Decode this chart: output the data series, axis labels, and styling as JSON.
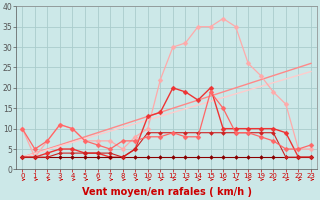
{
  "background_color": "#cce8e8",
  "grid_color": "#aacccc",
  "xlabel": "Vent moyen/en rafales ( km/h )",
  "xlabel_color": "#cc0000",
  "xlabel_fontsize": 7,
  "xtick_color": "#cc0000",
  "ytick_color": "#555555",
  "xlim": [
    -0.5,
    23.5
  ],
  "ylim": [
    0,
    40
  ],
  "yticks": [
    0,
    5,
    10,
    15,
    20,
    25,
    30,
    35,
    40
  ],
  "xticks": [
    0,
    1,
    2,
    3,
    4,
    5,
    6,
    7,
    8,
    9,
    10,
    11,
    12,
    13,
    14,
    15,
    16,
    17,
    18,
    19,
    20,
    21,
    22,
    23
  ],
  "lines": [
    {
      "x": [
        0,
        1,
        2,
        3,
        4,
        5,
        6,
        7,
        8,
        9,
        10,
        11,
        12,
        13,
        14,
        15,
        16,
        17,
        18,
        19,
        20,
        21,
        22,
        23
      ],
      "y": [
        10,
        3,
        7,
        11,
        10,
        7,
        7,
        7,
        5,
        8,
        10,
        22,
        30,
        31,
        35,
        35,
        37,
        35,
        26,
        23,
        19,
        16,
        5,
        5
      ],
      "color": "#ffaaaa",
      "lw": 0.9,
      "marker": "D",
      "ms": 2.5
    },
    {
      "x": [
        0,
        1,
        2,
        3,
        4,
        5,
        6,
        7,
        8,
        9,
        10,
        11,
        12,
        13,
        14,
        15,
        16,
        17,
        18,
        19,
        20,
        21,
        22,
        23
      ],
      "y": [
        3,
        3,
        4,
        5,
        5,
        4,
        4,
        3,
        3,
        5,
        13,
        14,
        20,
        19,
        17,
        20,
        10,
        10,
        10,
        10,
        10,
        9,
        3,
        3
      ],
      "color": "#ee3333",
      "lw": 1.0,
      "marker": "D",
      "ms": 2.5
    },
    {
      "x": [
        0,
        1,
        2,
        3,
        4,
        5,
        6,
        7,
        8,
        9,
        10,
        11,
        12,
        13,
        14,
        15,
        16,
        17,
        18,
        19,
        20,
        21,
        22,
        23
      ],
      "y": [
        3,
        3,
        3,
        3,
        3,
        3,
        3,
        3,
        3,
        3,
        3,
        3,
        3,
        3,
        3,
        3,
        3,
        3,
        3,
        3,
        3,
        3,
        3,
        3
      ],
      "color": "#880000",
      "lw": 0.8,
      "marker": "D",
      "ms": 2
    },
    {
      "x": [
        0,
        1,
        2,
        3,
        4,
        5,
        6,
        7,
        8,
        9,
        10,
        11,
        12,
        13,
        14,
        15,
        16,
        17,
        18,
        19,
        20,
        21,
        22,
        23
      ],
      "y": [
        3,
        3,
        3,
        4,
        4,
        4,
        4,
        4,
        3,
        5,
        9,
        9,
        9,
        9,
        9,
        9,
        9,
        9,
        9,
        9,
        9,
        3,
        3,
        3
      ],
      "color": "#cc2222",
      "lw": 0.8,
      "marker": "D",
      "ms": 2
    },
    {
      "x": [
        0,
        23
      ],
      "y": [
        3,
        26
      ],
      "color": "#ff8888",
      "lw": 1.0,
      "marker": null,
      "ms": 0
    },
    {
      "x": [
        0,
        23
      ],
      "y": [
        3,
        24
      ],
      "color": "#ffcccc",
      "lw": 1.0,
      "marker": null,
      "ms": 0
    },
    {
      "x": [
        0,
        1,
        2,
        3,
        4,
        5,
        6,
        7,
        8,
        9,
        10,
        11,
        12,
        13,
        14,
        15,
        16,
        17,
        18,
        19,
        20,
        21,
        22,
        23
      ],
      "y": [
        10,
        5,
        7,
        11,
        10,
        7,
        6,
        5,
        7,
        7,
        8,
        8,
        9,
        8,
        8,
        19,
        15,
        9,
        9,
        8,
        7,
        5,
        5,
        6
      ],
      "color": "#ff6666",
      "lw": 0.9,
      "marker": "D",
      "ms": 2.5
    }
  ]
}
